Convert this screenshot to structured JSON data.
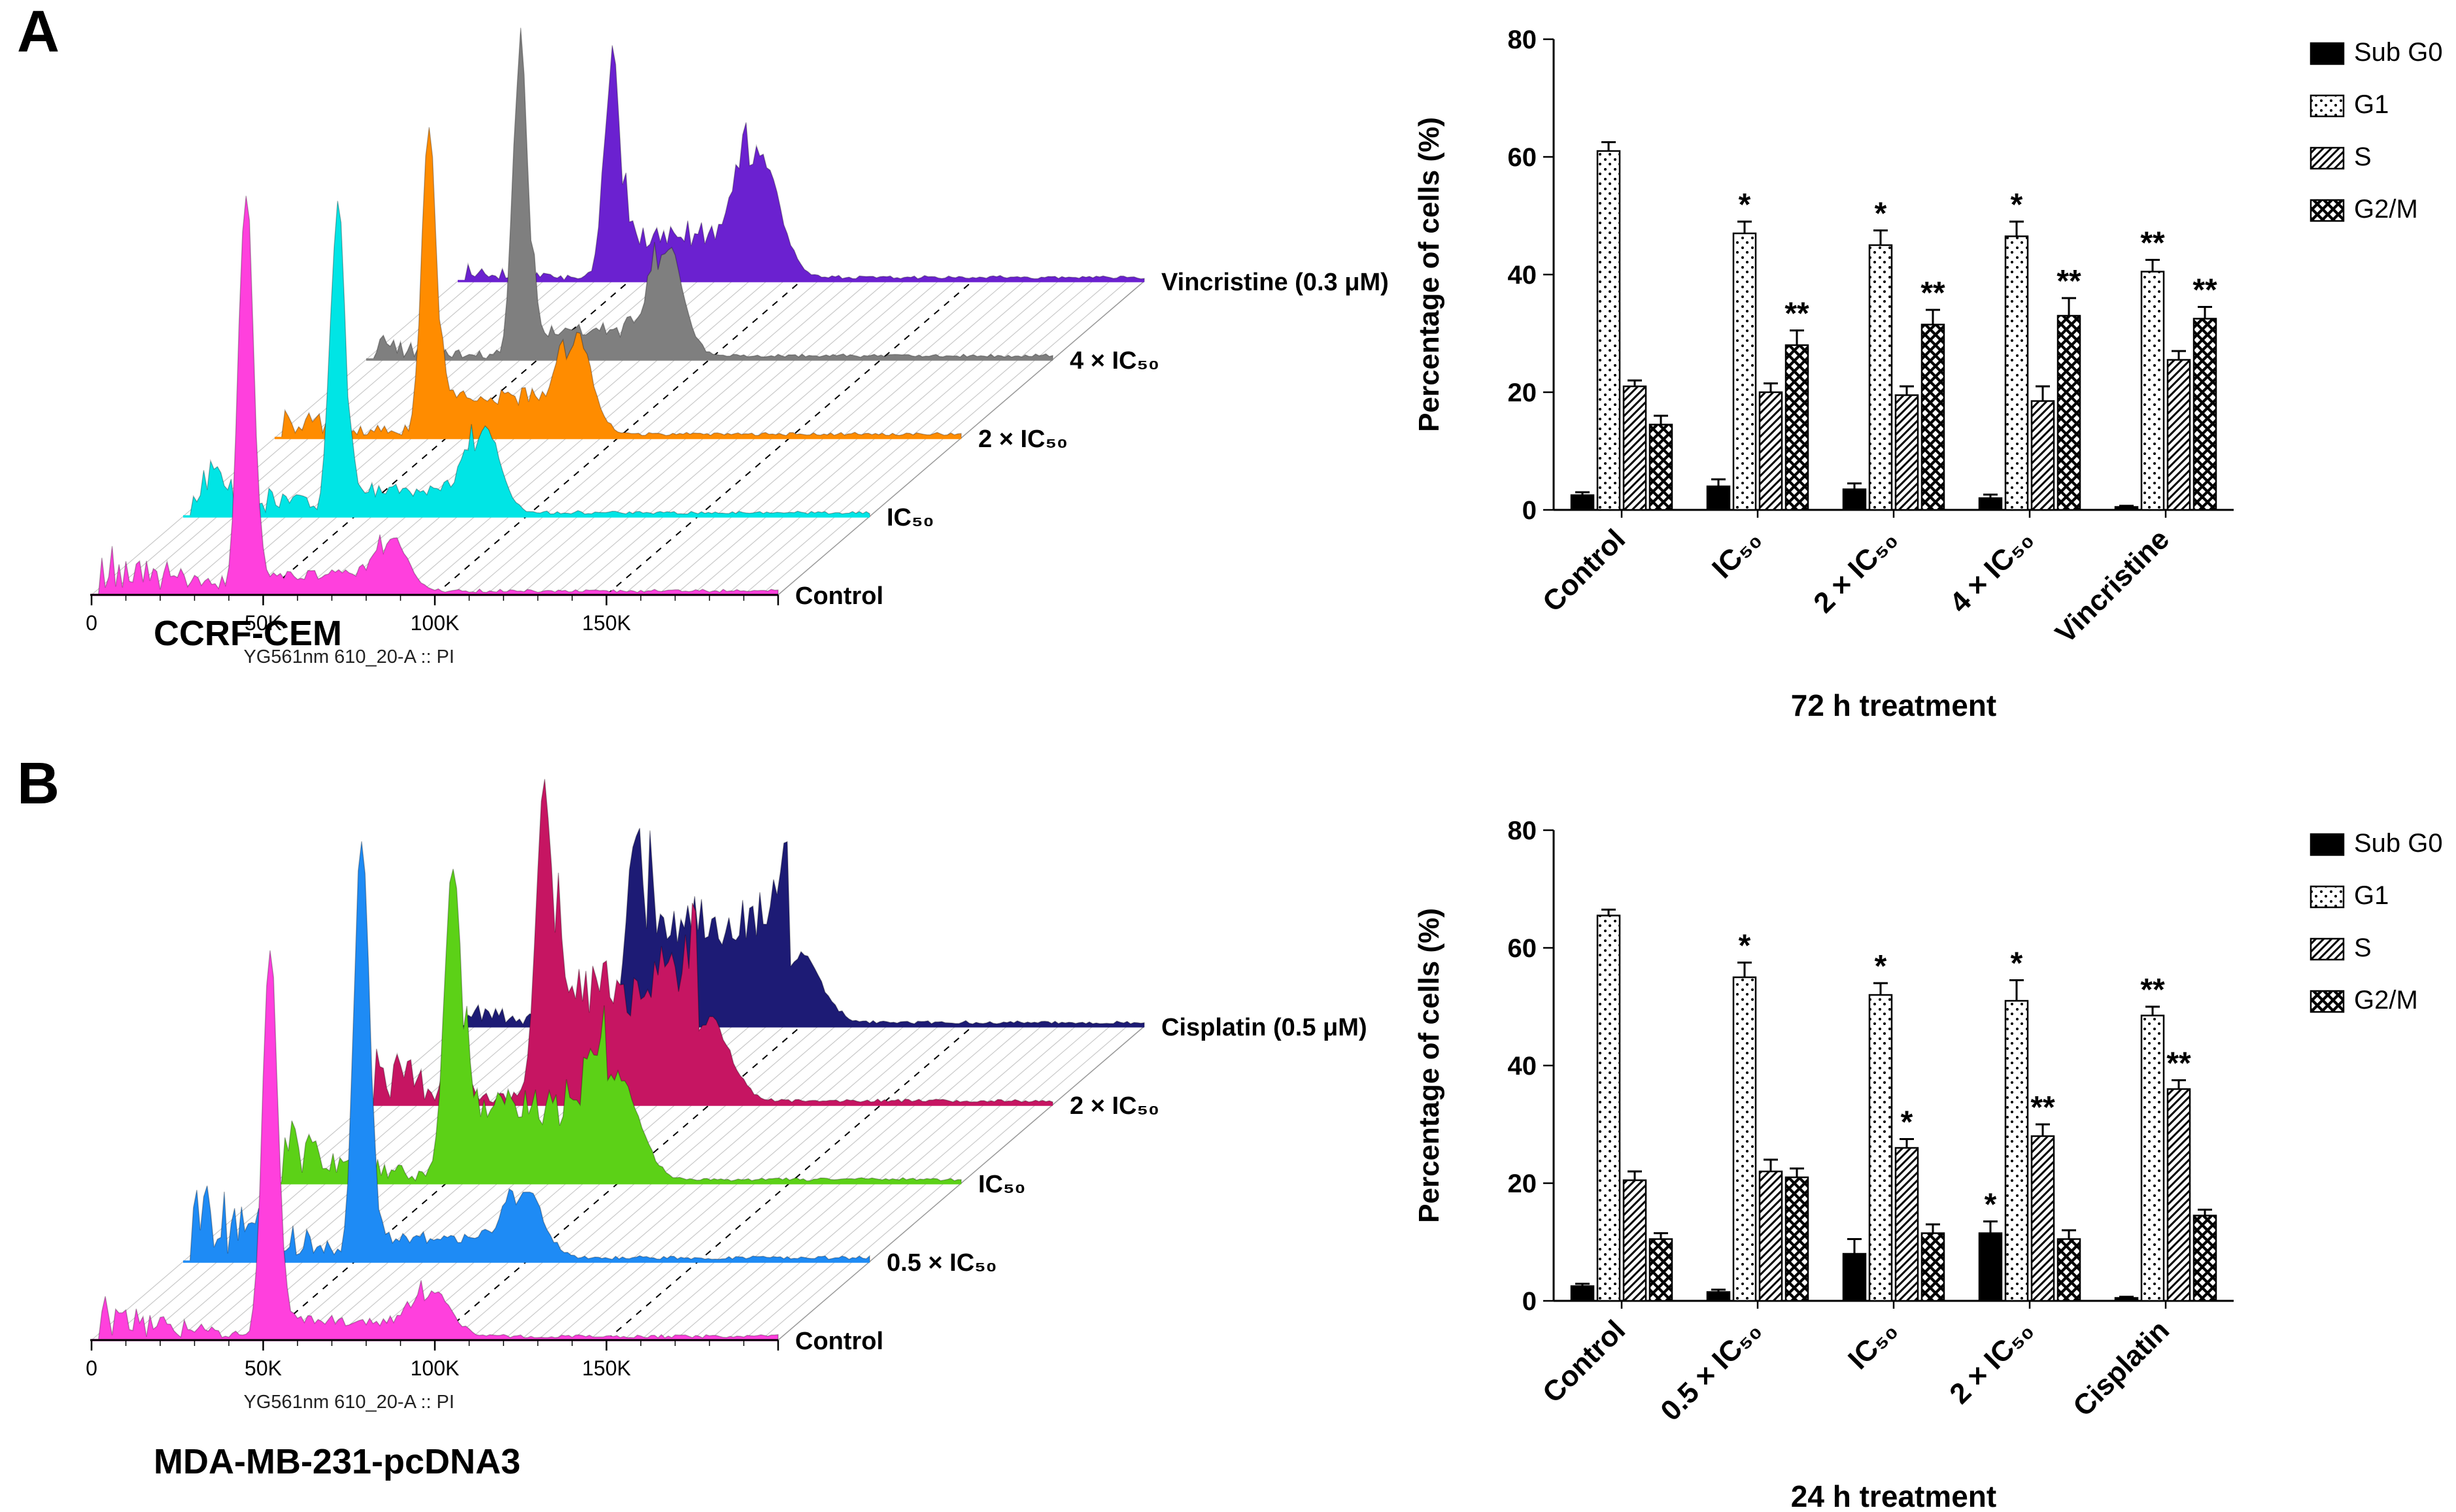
{
  "figure": {
    "panels": [
      {
        "letter": "A",
        "cell_line": "CCRF-CEM",
        "bar_chart_index": 0,
        "histogram": {
          "x_axis_label": "YG561nm 610_20-A :: PI",
          "x_max": 200,
          "x_ticks": [
            {
              "label": "0",
              "value": 0
            },
            {
              "label": "50K",
              "value": 50
            },
            {
              "label": "100K",
              "value": 100
            },
            {
              "label": "150K",
              "value": 150
            }
          ],
          "traces": [
            {
              "label": "Control",
              "color": "#FF40DD",
              "shape": {
                "g1_pos": 45,
                "g1_sigma": 2.2,
                "g1_amp": 1.0,
                "g2_pos": 88,
                "g2_sigma": 4.5,
                "g2_amp": 0.14,
                "s_amp": 0.05,
                "debris_amp": 0.1
              }
            },
            {
              "label": "IC₅₀",
              "color": "#00E5E5",
              "shape": {
                "g1_pos": 45,
                "g1_sigma": 2.2,
                "g1_amp": 0.78,
                "g2_pos": 88,
                "g2_sigma": 4.5,
                "g2_amp": 0.22,
                "s_amp": 0.07,
                "debris_amp": 0.1
              }
            },
            {
              "label": "2 × IC₅₀",
              "color": "#FF8C00",
              "shape": {
                "g1_pos": 45,
                "g1_sigma": 2.2,
                "g1_amp": 0.75,
                "g2_pos": 88,
                "g2_sigma": 4.5,
                "g2_amp": 0.26,
                "s_amp": 0.1,
                "debris_amp": 0.06
              }
            },
            {
              "label": "4 × IC₅₀",
              "color": "#7F7F7F",
              "shape": {
                "g1_pos": 45,
                "g1_sigma": 2.2,
                "g1_amp": 0.8,
                "g2_pos": 88,
                "g2_sigma": 4.5,
                "g2_amp": 0.28,
                "s_amp": 0.08,
                "debris_amp": 0.04
              }
            },
            {
              "label": "Vincristine (0.3 μM)",
              "color": "#6B21D0",
              "shape": {
                "g1_pos": 45,
                "g1_sigma": 2.4,
                "g1_amp": 0.57,
                "g2_pos": 88,
                "g2_sigma": 5.5,
                "g2_amp": 0.33,
                "s_amp": 0.12,
                "debris_amp": 0.03
              }
            }
          ]
        }
      },
      {
        "letter": "B",
        "cell_line": "MDA-MB-231-pcDNA3",
        "bar_chart_index": 1,
        "histogram": {
          "x_axis_label": "YG561nm 610_20-A :: PI",
          "x_max": 200,
          "x_ticks": [
            {
              "label": "0",
              "value": 0
            },
            {
              "label": "50K",
              "value": 50
            },
            {
              "label": "100K",
              "value": 100
            },
            {
              "label": "150K",
              "value": 150
            }
          ],
          "traces": [
            {
              "label": "Control",
              "color": "#FF40DD",
              "shape": {
                "g1_pos": 52,
                "g1_sigma": 2.2,
                "g1_amp": 1.03,
                "g2_pos": 100,
                "g2_sigma": 5.0,
                "g2_amp": 0.12,
                "s_amp": 0.05,
                "debris_amp": 0.07
              }
            },
            {
              "label": "0.5 × IC₅₀",
              "color": "#1E8BF5",
              "shape": {
                "g1_pos": 52,
                "g1_sigma": 2.2,
                "g1_amp": 1.13,
                "g2_pos": 100,
                "g2_sigma": 5.0,
                "g2_amp": 0.18,
                "s_amp": 0.06,
                "debris_amp": 0.16
              }
            },
            {
              "label": "IC₅₀",
              "color": "#5CD117",
              "shape": {
                "g1_pos": 52,
                "g1_sigma": 2.6,
                "g1_amp": 0.78,
                "g2_pos": 100,
                "g2_sigma": 6.0,
                "g2_amp": 0.28,
                "s_amp": 0.2,
                "debris_amp": 0.1
              }
            },
            {
              "label": "2 × IC₅₀",
              "color": "#C61562",
              "shape": {
                "g1_pos": 52,
                "g1_sigma": 2.6,
                "g1_amp": 0.8,
                "g2_pos": 100,
                "g2_sigma": 6.0,
                "g2_amp": 0.22,
                "s_amp": 0.3,
                "debris_amp": 0.1
              }
            },
            {
              "label": "Cisplatin (0.5 μM)",
              "color": "#1D1B75",
              "shape": {
                "g1_pos": 52,
                "g1_sigma": 2.6,
                "g1_amp": 0.52,
                "g2_pos": 100,
                "g2_sigma": 6.0,
                "g2_amp": 0.18,
                "s_amp": 0.27,
                "debris_amp": 0.04
              }
            }
          ]
        }
      }
    ]
  },
  "chart_data": [
    {
      "type": "bar",
      "title": "",
      "xlabel": "72 h treatment",
      "ylabel": "Percentage of cells (%)",
      "ylim": [
        0,
        80
      ],
      "yticks": [
        0,
        20,
        40,
        60,
        80
      ],
      "grid": false,
      "legend_position": "top-right",
      "categories": [
        "Control",
        "IC₅₀",
        "2 × IC₅₀",
        "4 × IC₅₀",
        "Vincristine"
      ],
      "series": [
        {
          "name": "Sub G0",
          "pattern": "solid",
          "values": [
            2.5,
            4.0,
            3.5,
            2.0,
            0.5
          ],
          "errors": [
            0.5,
            1.2,
            1.0,
            0.6,
            0.2
          ],
          "sig": [
            "",
            "",
            "",
            "",
            ""
          ]
        },
        {
          "name": "G1",
          "pattern": "dots",
          "values": [
            61.0,
            47.0,
            45.0,
            46.5,
            40.5
          ],
          "errors": [
            1.5,
            2.0,
            2.5,
            2.5,
            2.0
          ],
          "sig": [
            "",
            "*",
            "*",
            "*",
            "**"
          ]
        },
        {
          "name": "S",
          "pattern": "hatch",
          "values": [
            21.0,
            20.0,
            19.5,
            18.5,
            25.5
          ],
          "errors": [
            1.0,
            1.5,
            1.5,
            2.5,
            1.5
          ],
          "sig": [
            "",
            "",
            "",
            "",
            ""
          ]
        },
        {
          "name": "G2/M",
          "pattern": "checks",
          "values": [
            14.5,
            28.0,
            31.5,
            33.0,
            32.5
          ],
          "errors": [
            1.5,
            2.5,
            2.5,
            3.0,
            2.0
          ],
          "sig": [
            "",
            "**",
            "**",
            "**",
            "**"
          ]
        }
      ]
    },
    {
      "type": "bar",
      "title": "",
      "xlabel": "24 h treatment",
      "ylabel": "Percentage of cells (%)",
      "ylim": [
        0,
        80
      ],
      "yticks": [
        0,
        20,
        40,
        60,
        80
      ],
      "grid": false,
      "legend_position": "top-right",
      "categories": [
        "Control",
        "0.5 × IC₅₀",
        "IC₅₀",
        "2 × IC₅₀",
        "Cisplatin"
      ],
      "series": [
        {
          "name": "Sub G0",
          "pattern": "solid",
          "values": [
            2.5,
            1.5,
            8.0,
            11.5,
            0.5
          ],
          "errors": [
            0.4,
            0.4,
            2.5,
            2.0,
            0.2
          ],
          "sig": [
            "",
            "",
            "",
            "*",
            ""
          ]
        },
        {
          "name": "G1",
          "pattern": "dots",
          "values": [
            65.5,
            55.0,
            52.0,
            51.0,
            48.5
          ],
          "errors": [
            1.0,
            2.5,
            2.0,
            3.5,
            1.5
          ],
          "sig": [
            "",
            "*",
            "*",
            "*",
            "**"
          ]
        },
        {
          "name": "S",
          "pattern": "hatch",
          "values": [
            20.5,
            22.0,
            26.0,
            28.0,
            36.0
          ],
          "errors": [
            1.5,
            2.0,
            1.5,
            2.0,
            1.5
          ],
          "sig": [
            "",
            "",
            "*",
            "**",
            "**"
          ]
        },
        {
          "name": "G2/M",
          "pattern": "checks",
          "values": [
            10.5,
            21.0,
            11.5,
            10.5,
            14.5
          ],
          "errors": [
            1.0,
            1.5,
            1.5,
            1.5,
            1.0
          ],
          "sig": [
            "",
            "",
            "",
            "",
            ""
          ]
        }
      ]
    }
  ]
}
